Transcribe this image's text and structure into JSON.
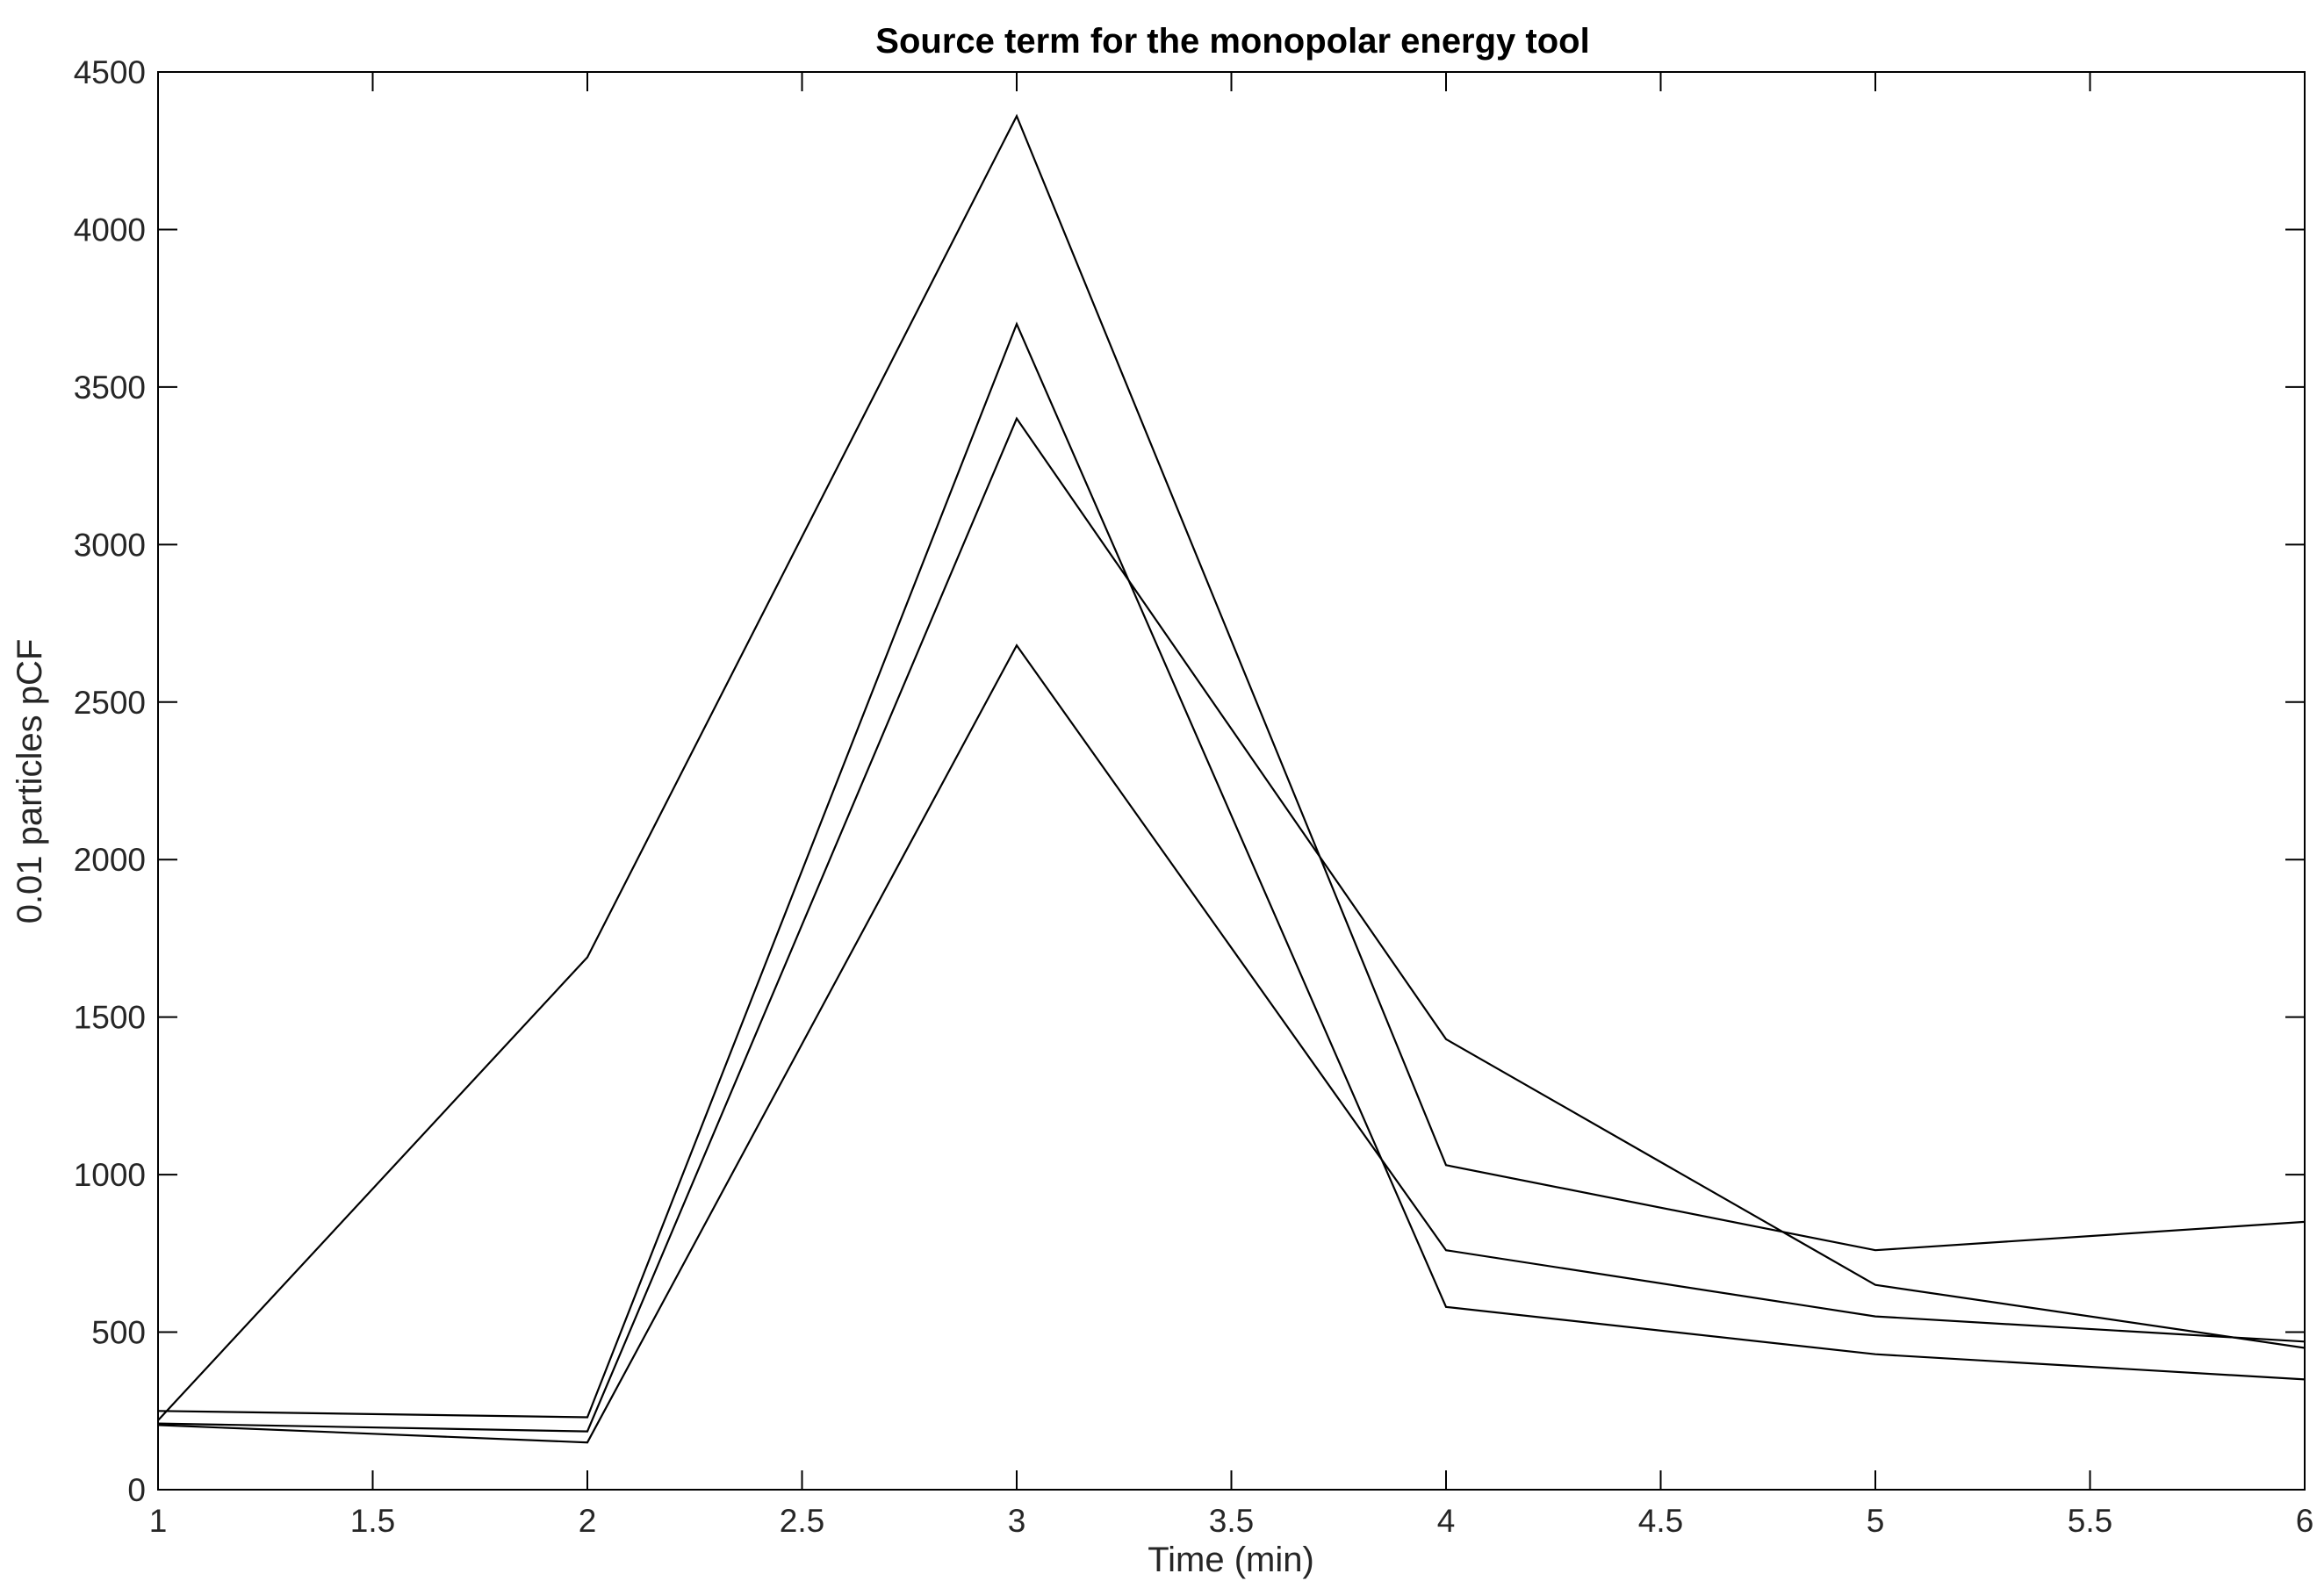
{
  "chart_data": {
    "type": "line",
    "title": "Source term for the monopolar energy tool",
    "xlabel": "Time (min)",
    "ylabel": "0.01 particles pCF",
    "xlim": [
      1,
      6
    ],
    "ylim": [
      0,
      4500
    ],
    "x_ticks": [
      1,
      1.5,
      2,
      2.5,
      3,
      3.5,
      4,
      4.5,
      5,
      5.5,
      6
    ],
    "x_tick_labels": [
      "1",
      "1.5",
      "2",
      "2.5",
      "3",
      "3.5",
      "4",
      "4.5",
      "5",
      "5.5",
      "6"
    ],
    "y_ticks": [
      0,
      500,
      1000,
      1500,
      2000,
      2500,
      3000,
      3500,
      4000,
      4500
    ],
    "y_tick_labels": [
      "0",
      "500",
      "1000",
      "1500",
      "2000",
      "2500",
      "3000",
      "3500",
      "4000",
      "4500"
    ],
    "grid": false,
    "legend": "none",
    "line_color": "#000000",
    "x": [
      1,
      2,
      3,
      4,
      5,
      6
    ],
    "series": [
      {
        "values": [
          220,
          1690,
          4360,
          1030,
          760,
          850
        ]
      },
      {
        "values": [
          250,
          230,
          3700,
          580,
          430,
          350
        ]
      },
      {
        "values": [
          210,
          185,
          3400,
          1430,
          650,
          450
        ]
      },
      {
        "values": [
          205,
          150,
          2680,
          760,
          550,
          470
        ]
      }
    ]
  }
}
